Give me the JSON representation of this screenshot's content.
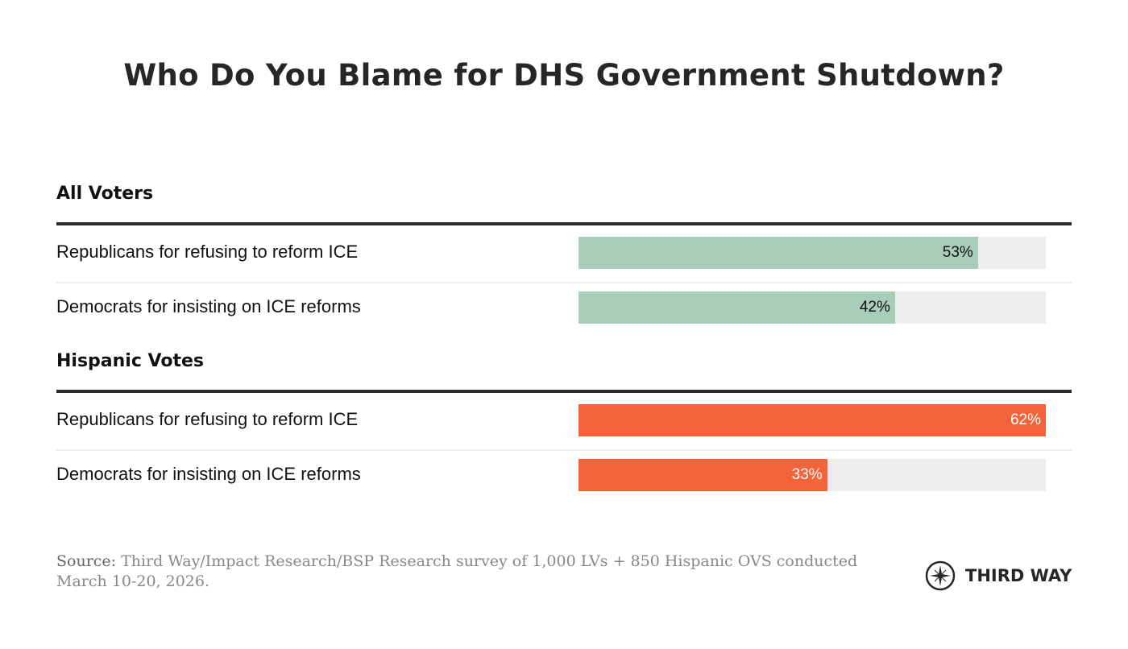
{
  "chart_data": {
    "type": "bar",
    "orientation": "horizontal",
    "title": "Who Do You Blame for DHS Government Shutdown?",
    "scale_max": 62,
    "groups": [
      {
        "name": "All Voters",
        "color": "#a8cdb9",
        "label_color": "#111111",
        "items": [
          {
            "label": "Republicans for refusing to reform ICE",
            "value": 53,
            "value_label": "53%"
          },
          {
            "label": "Democrats for insisting on ICE reforms",
            "value": 42,
            "value_label": "42%"
          }
        ]
      },
      {
        "name": "Hispanic Votes",
        "color": "#f4633a",
        "label_color": "#ffffff",
        "items": [
          {
            "label": "Republicans for refusing to reform ICE",
            "value": 62,
            "value_label": "62%"
          },
          {
            "label": "Democrats for insisting on ICE reforms",
            "value": 33,
            "value_label": "33%"
          }
        ]
      }
    ],
    "track_color": "#ececec"
  },
  "footer": {
    "source_label": "Source:",
    "source_text": " Third Way/Impact Research/BSP Research survey of 1,000 LVs + 850 Hispanic OVS conducted March 10-20, 2026.",
    "logo_text": "THIRD WAY"
  }
}
